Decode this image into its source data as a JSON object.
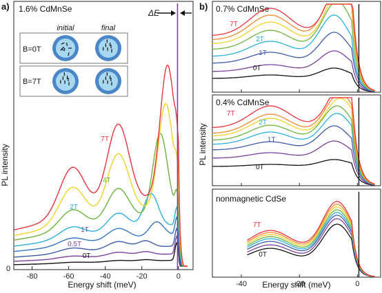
{
  "figure": {
    "panel_a_letter": "a)",
    "panel_b_letter": "b)",
    "inset": {
      "col_initial": "initial",
      "col_final": "final",
      "row1": "B=0T",
      "row2": "B=7T"
    },
    "delta_label": "ΔE"
  },
  "chart_data": [
    {
      "type": "line",
      "panel": "a",
      "title": "1.6% CdMnSe",
      "xlabel": "Energy shift (meV)",
      "ylabel": "PL intensity",
      "xlim": [
        -90,
        8
      ],
      "ylim": [
        0,
        1
      ],
      "xticks": [
        -80,
        -60,
        -40,
        -20,
        0
      ],
      "yticks": [
        0
      ],
      "grid": false,
      "series": [
        {
          "name": "0T",
          "color": "#111111",
          "peak_x": -8,
          "peak_h": 0.02
        },
        {
          "name": "0.5T",
          "color": "#7b3f9e",
          "peak_x": -8,
          "peak_h": 0.025
        },
        {
          "name": "1T",
          "color": "#3f5aa8",
          "peak_x": -8,
          "peak_h": 0.03
        },
        {
          "name": "2T",
          "color": "#2ab0e0",
          "peak_x": -8,
          "peak_h": 0.04
        },
        {
          "name": "4T",
          "color": "#6bb43b",
          "peak_x": -8,
          "peak_h": 0.06
        },
        {
          "name": "7T",
          "color": "#e8333a",
          "peak_x": -8,
          "peak_h": 0.045
        },
        {
          "name": "",
          "color": "#f2d22a",
          "peak_x": -8,
          "peak_h": 0.07
        }
      ]
    },
    {
      "type": "line",
      "panel": "b-top",
      "title": "0.7% CdMnSe",
      "xlim": [
        -50,
        8
      ],
      "ylim": [
        0,
        1
      ],
      "xticks": [
        -40,
        -20,
        0
      ],
      "grid": false,
      "series": [
        {
          "name": "0T",
          "color": "#111111"
        },
        {
          "name": "1T",
          "color": "#3f5aa8"
        },
        {
          "name": "2T",
          "color": "#2ab0e0"
        },
        {
          "name": "7T",
          "color": "#e8333a"
        }
      ]
    },
    {
      "type": "line",
      "panel": "b-middle",
      "title": "0.4% CdMnSe",
      "ylabel": "PL intensity",
      "xlim": [
        -50,
        8
      ],
      "ylim": [
        0,
        1
      ],
      "xticks": [
        -40,
        -20,
        0
      ],
      "grid": false,
      "series": [
        {
          "name": "0T",
          "color": "#111111"
        },
        {
          "name": "1T",
          "color": "#3f5aa8"
        },
        {
          "name": "2T",
          "color": "#2ab0e0"
        },
        {
          "name": "7T",
          "color": "#e8333a"
        }
      ]
    },
    {
      "type": "line",
      "panel": "b-bottom",
      "title": "nonmagnetic CdSe",
      "xlabel": "Energy shift (meV)",
      "xlim": [
        -50,
        8
      ],
      "ylim": [
        0,
        1
      ],
      "xticks": [
        -40,
        -20,
        0
      ],
      "xticklabels": [
        "-40",
        "-20",
        "0"
      ],
      "grid": false,
      "series": [
        {
          "name": "0T",
          "color": "#111111"
        },
        {
          "name": "7T",
          "color": "#e8333a"
        }
      ]
    }
  ]
}
